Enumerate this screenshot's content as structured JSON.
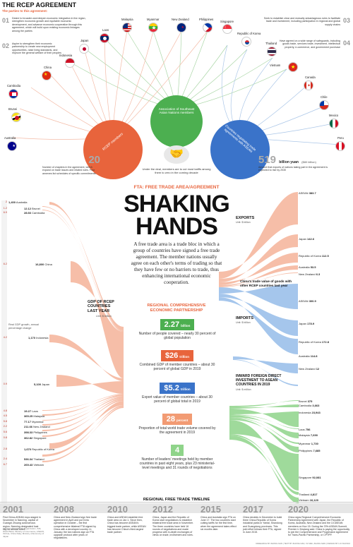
{
  "header": {
    "title": "THE RCEP AGREEMENT",
    "subtitle": "The parties to this agreement:"
  },
  "top_notes": {
    "n01": "01",
    "n01_text": "Desire to broaden and deepen economic integration in the region, strengthen economic growth and equitable economic development, and advance economic cooperation through this agreement, which will build upon existing economic linkages among the parties",
    "n02": "02",
    "n02_text": "Aspire to strengthen their economic partnership to create new employment opportunities, raise living standards, and improve the general welfare of their peoples",
    "n03": "03",
    "n03_text": "Seek to establish clear and mutually advantageous rules to facilitate trade and investment, including participation in regional and global supply chains",
    "n04": "04",
    "n04_text": "Have agreed on a wide range of safeguards, including goods trade, services trade, investment, intellectual property, e-commerce, and government purchase"
  },
  "flags_top": [
    "Malaysia",
    "Myanmar",
    "New Zealand",
    "Philippines"
  ],
  "flags_left": [
    "Japan",
    "Laos",
    "Indonesia",
    "China",
    "Cambodia",
    "Brunei",
    "Australia"
  ],
  "flags_right": [
    "Singapore",
    "Republic of Korea",
    "Thailand",
    "Vietnam",
    "Canada",
    "Chile",
    "Mexico",
    "Peru"
  ],
  "center_circles": {
    "asean": "Association of Southeast Asian Nations members",
    "rcep": "RCEP members",
    "partners": "Countries negotiating trade agreements with ASEAN"
  },
  "stat_20": {
    "num": "20",
    "text": "Number of chapters in the agreement, which expand on trade issues and related rules. Four annexes list schedules of specific commitments"
  },
  "stat_519": {
    "num": "519",
    "unit": "billion yuan",
    "paren": "($80 billion)",
    "text": "Amount that exports of nations taking part in the agreement is expected to rise by 2030"
  },
  "handshake_caption": "Under the deal, members are to cut most tariffs among them to zero in the coming decade",
  "fta": {
    "kicker": "FTA: FREE TRADE AREA/AGREEMENT",
    "headline_1": "SHAKING",
    "headline_2": "HANDS",
    "intro": "A free trade area is a trade bloc in which a group of countries have signed a free trade agreement. The member nations usually agree on each other's terms of trading so that they have few or no barriers to trade, thus enhancing international economic cooperation."
  },
  "rcep_section": {
    "title_1": "REGIONAL COMPREHENSIVE",
    "title_2": "ECONOMIC PARTNERSHIP",
    "stats": [
      {
        "value": "2.27",
        "unit": "billion",
        "desc": "Number of people covered – nearly 30 percent of global population",
        "color": "#4caf50"
      },
      {
        "value": "$26",
        "unit": "trillion",
        "desc": "Combined GDP of member countries – about 30 percent of global GDP in 2019",
        "color": "#e8643c"
      },
      {
        "value": "$5.2",
        "unit": "trillion",
        "desc": "Export value of member countries – about 30 percent of global total in 2019",
        "color": "#3a73c9"
      },
      {
        "value": "28",
        "unit": "percent",
        "desc": "Proportion of total world trade volume covered by the agreement in 2019",
        "color": "#f29b73"
      },
      {
        "value": "4",
        "unit": "",
        "desc": "Number of leaders' meetings held by member countries in past eight years, plus 23 ministerial-level meetings and 31 rounds of negotiations",
        "color": "#8fd48a"
      }
    ]
  },
  "gdp_chart": {
    "title": "GDP OF RCEP COUNTRIES LAST YEAR",
    "unit": "Unit: $ billion",
    "growth_label": "Real GDP growth, annual percentage change",
    "rows": [
      {
        "growth": "2",
        "value": "1,400",
        "country": "Australia"
      },
      {
        "growth": "1.2",
        "value": "12.12",
        "country": "Brunei"
      },
      {
        "growth": "6.9",
        "value": "28.66",
        "country": "Cambodia"
      },
      {
        "growth": "6.2",
        "value": "16,800",
        "country": "China"
      },
      {
        "growth": "4.2",
        "value": "1,170",
        "country": "Indonesia"
      },
      {
        "growth": "0.9",
        "value": "5,100",
        "country": "Japan"
      },
      {
        "growth": "4.8",
        "value": "19.27",
        "country": "Laos"
      },
      {
        "growth": "4.5",
        "value": "365.25",
        "country": "Malaysia"
      },
      {
        "growth": "5.8",
        "value": "77.17",
        "country": "Myanmar"
      },
      {
        "growth": "2.2",
        "value": "211.66",
        "country": "New Zealand"
      },
      {
        "growth": "5.6",
        "value": "398.33",
        "country": "Philippines"
      },
      {
        "growth": "0.8",
        "value": "362.82",
        "country": "Singapore"
      },
      {
        "growth": "2.8",
        "value": "1,670",
        "country": "Republic of Korea"
      },
      {
        "growth": "2.4",
        "value": "536.34",
        "country": "Thailand"
      },
      {
        "growth": "6.7",
        "value": "269.43",
        "country": "Vietnam"
      }
    ]
  },
  "trade_chart": {
    "exports_label": "EXPORTS",
    "imports_label": "IMPORTS",
    "unit": "Unit: $ billion",
    "title": "China's trade value of goods with other RCEP countries last year",
    "exports": [
      {
        "name": "ASEAN",
        "value": "383.7"
      },
      {
        "name": "Japan",
        "value": "142.6"
      },
      {
        "name": "Republic of Korea",
        "value": "112.5"
      },
      {
        "name": "Australia",
        "value": "53.5"
      },
      {
        "name": "New Zealand",
        "value": "6.3"
      }
    ],
    "imports": [
      {
        "name": "ASEAN",
        "value": "300.9"
      },
      {
        "name": "Japan",
        "value": "178.9"
      },
      {
        "name": "Republic of Korea",
        "value": "172.8"
      },
      {
        "name": "Australia",
        "value": "114.8"
      },
      {
        "name": "New Zealand",
        "value": "12"
      }
    ]
  },
  "fdi_chart": {
    "title": "INWARD FOREIGN DIRECT INVESTMENT TO ASEAN COUNTRIES IN 2019",
    "unit": "Unit: $ million",
    "rows": [
      {
        "country": "Brunei",
        "value": "375"
      },
      {
        "country": "Cambodia",
        "value": "3,663"
      },
      {
        "country": "Indonesia",
        "value": "23,943"
      },
      {
        "country": "Laos",
        "value": "756"
      },
      {
        "country": "Malaysia",
        "value": "7,690"
      },
      {
        "country": "Myanmar",
        "value": "1,730"
      },
      {
        "country": "Philippines",
        "value": "7,685"
      },
      {
        "country": "Singapore",
        "value": "92,081"
      },
      {
        "country": "Thailand",
        "value": "4,817"
      },
      {
        "country": "Vietnam",
        "value": "16,120"
      }
    ]
  },
  "timeline": {
    "title": "REGIONAL FREE TRADE TIMELINE",
    "items": [
      {
        "year": "2001",
        "text": "First China-ASEAN expo staged in November in Nanning, capital of Guangxi Zhuang autonomous region. Nanning designated host city for annual event."
      },
      {
        "year": "2008",
        "text": "China and New Zealand sign free trade agreement in April and put it into operation in October – the first comprehensive bilateral FTA signed by China with a developed country. In January, the two nations sign an FTA upgrade protocol after years of negotiations."
      },
      {
        "year": "2010",
        "text": "China and ASEAN establish free trade area on Jan 1. Since then, China has become ASEAN's biggest trade partner, while ASEAN has become China's third-largest trade partner."
      },
      {
        "year": "2012",
        "text": "China, Japan and the Republic of Korea start negotiations to establish trilateral free trade area in November. The three countries have held 16 rounds of negotiations and made progress with in-depth exchanges of views on trade, investment and rules."
      },
      {
        "year": "2015",
        "text": "China and Australia sign FTA on June 17. The two countries start cutting tariffs for the first time, when the agreement takes effect six months later."
      },
      {
        "year": "2017",
        "text": "China decides in December to build three China-Republic of Korea industrial parks in Yantai, Shandong and Guangdong provinces. This joint effort follows their FTA, signed in June 2015."
      },
      {
        "year": "2020",
        "text": "China signs Regional Comprehensive Economic Partnership Agreement with Japan, the Republic of Korea, Australia, New Zealand and the 10 ASEAN members on Nov 15. During the 37th ASEAN Summit, Premier Li Keqiang said: China is paying the opportunity to join the Comprehensive and Progressive Agreement for Trans-Pacific Partnership, or CPTPP."
      }
    ]
  },
  "footer": {
    "sources": "Sources: World Trade Organization, IMF, World Bank, Ministry of Commerce, ASEAN, Xinhua, China Daily, Ministry of Economy of Japan",
    "credit": "RESEARCH BY ZHONG NAN | TEXT BY ZHONG NAN, XU WEI, ZHANG MAN | DESIGN BY LIU XIAOSUI"
  },
  "colors": {
    "orange": "#e8643c",
    "green": "#4caf50",
    "blue": "#3a73c9",
    "salmon": "#f5b39a",
    "lightblue": "#9cc0ea"
  }
}
